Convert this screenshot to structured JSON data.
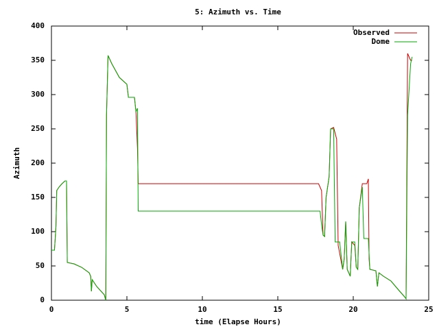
{
  "chart_data": {
    "type": "line",
    "title": "5: Azimuth vs. Time",
    "x_label": "time (Elapse Hours)",
    "y_label": "Azimuth",
    "xlim": [
      0,
      25
    ],
    "xticks": [
      0,
      5,
      10,
      15,
      20,
      25
    ],
    "ylim": [
      0,
      400
    ],
    "yticks": [
      0,
      50,
      100,
      150,
      200,
      250,
      300,
      350,
      400
    ],
    "grid": false,
    "legend": "top-right",
    "series": [
      {
        "name": "Observed",
        "color": "#cc0000",
        "x": [
          0,
          0.2,
          0.3,
          0.35,
          0.5,
          0.7,
          0.9,
          1.0,
          1.05,
          1.5,
          2,
          2.5,
          2.6,
          2.65,
          2.7,
          3,
          3.5,
          3.6,
          3.65,
          3.75,
          4,
          4.5,
          5,
          5.1,
          5.5,
          5.6,
          5.7,
          5.75,
          17.7,
          17.9,
          18,
          18.1,
          18.2,
          18.4,
          18.5,
          18.7,
          18.9,
          19,
          19.3,
          19.4,
          19.5,
          19.6,
          19.8,
          19.9,
          20.1,
          20.2,
          20.3,
          20.4,
          20.6,
          20.9,
          21,
          21.05,
          21.1,
          21.5,
          21.6,
          21.7,
          22,
          22.5,
          23,
          23.4,
          23.5,
          23.6,
          23.8,
          23.9
        ],
        "values": [
          73,
          73,
          108,
          160,
          165,
          170,
          174,
          174,
          55,
          53,
          48,
          40,
          35,
          13,
          30,
          20,
          8,
          0,
          270,
          357,
          345,
          325,
          315,
          296,
          296,
          275,
          222,
          170,
          170,
          160,
          95,
          93,
          150,
          180,
          250,
          252,
          235,
          80,
          45,
          60,
          115,
          45,
          35,
          85,
          80,
          48,
          45,
          135,
          170,
          170,
          177,
          60,
          45,
          43,
          20,
          40,
          35,
          28,
          15,
          5,
          2,
          360,
          350,
          350
        ]
      },
      {
        "name": "Dome",
        "color": "#00aa00",
        "x": [
          0,
          0.2,
          0.3,
          0.35,
          0.5,
          0.7,
          0.9,
          1.0,
          1.05,
          1.5,
          2,
          2.5,
          2.6,
          2.65,
          2.7,
          3,
          3.5,
          3.6,
          3.65,
          3.75,
          4,
          4.5,
          5,
          5.1,
          5.5,
          5.6,
          5.7,
          5.75,
          17.8,
          17.9,
          18,
          18.1,
          18.2,
          18.4,
          18.5,
          18.7,
          18.8,
          19.1,
          19.3,
          19.4,
          19.5,
          19.6,
          19.8,
          19.9,
          20.1,
          20.2,
          20.3,
          20.4,
          20.6,
          20.7,
          21,
          21.1,
          21.5,
          21.6,
          21.7,
          22,
          22.5,
          23,
          23.4,
          23.5,
          23.6,
          23.8,
          23.9
        ],
        "values": [
          73,
          73,
          108,
          160,
          165,
          170,
          174,
          174,
          55,
          53,
          48,
          40,
          35,
          13,
          30,
          20,
          8,
          0,
          270,
          357,
          345,
          325,
          315,
          296,
          296,
          275,
          280,
          130,
          130,
          110,
          95,
          93,
          150,
          180,
          250,
          250,
          85,
          85,
          45,
          60,
          115,
          45,
          35,
          85,
          85,
          48,
          45,
          135,
          165,
          90,
          90,
          45,
          43,
          20,
          40,
          35,
          28,
          15,
          5,
          2,
          270,
          345,
          355
        ]
      }
    ]
  }
}
